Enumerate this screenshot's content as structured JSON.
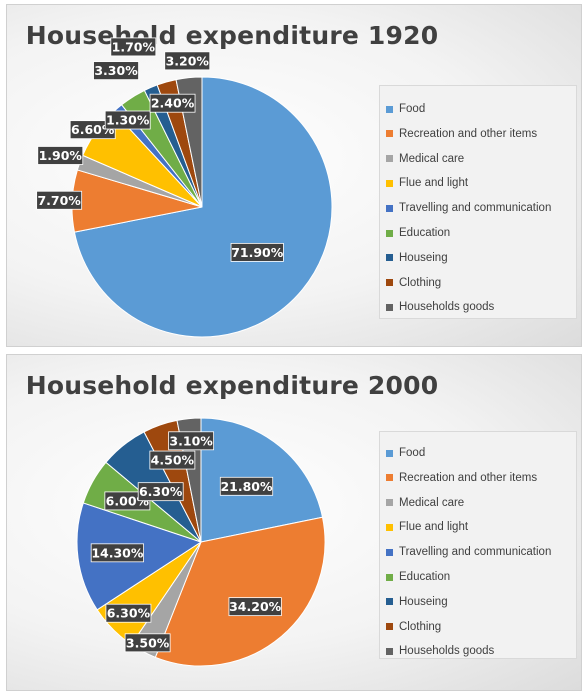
{
  "chart_data": [
    {
      "type": "pie",
      "title": "Household expenditure 1920",
      "categories": [
        "Food",
        "Recreation and other items",
        "Medical care",
        "Flue and light",
        "Travelling and communication",
        "Education",
        "Houseing",
        "Clothing",
        "Households goods"
      ],
      "values": [
        71.9,
        7.7,
        1.9,
        6.6,
        1.3,
        3.3,
        1.7,
        2.4,
        3.2
      ],
      "labels": [
        "71.90%",
        "7.70%",
        "1.90%",
        "6.60%",
        "1.30%",
        "3.30%",
        "1.70%",
        "2.40%",
        "3.20%"
      ],
      "legend_position": "right"
    },
    {
      "type": "pie",
      "title": "Household expenditure 2000",
      "categories": [
        "Food",
        "Recreation and other items",
        "Medical care",
        "Flue and light",
        "Travelling and communication",
        "Education",
        "Houseing",
        "Clothing",
        "Households goods"
      ],
      "values": [
        21.8,
        34.2,
        3.5,
        6.3,
        14.3,
        6.0,
        6.3,
        4.5,
        3.1
      ],
      "labels": [
        "21.80%",
        "34.20%",
        "3.50%",
        "6.30%",
        "14.30%",
        "6.00%",
        "6.30%",
        "4.50%",
        "3.10%"
      ],
      "legend_position": "right"
    }
  ],
  "colors": {
    "Food": "#5b9bd5",
    "Recreation and other items": "#ed7d31",
    "Medical care": "#a5a5a5",
    "Flue and light": "#ffc000",
    "Travelling and communication": "#4472c4",
    "Education": "#70ad47",
    "Houseing": "#255e91",
    "Clothing": "#9e480e",
    "Households goods": "#636363"
  },
  "label_box_color": "#404040"
}
